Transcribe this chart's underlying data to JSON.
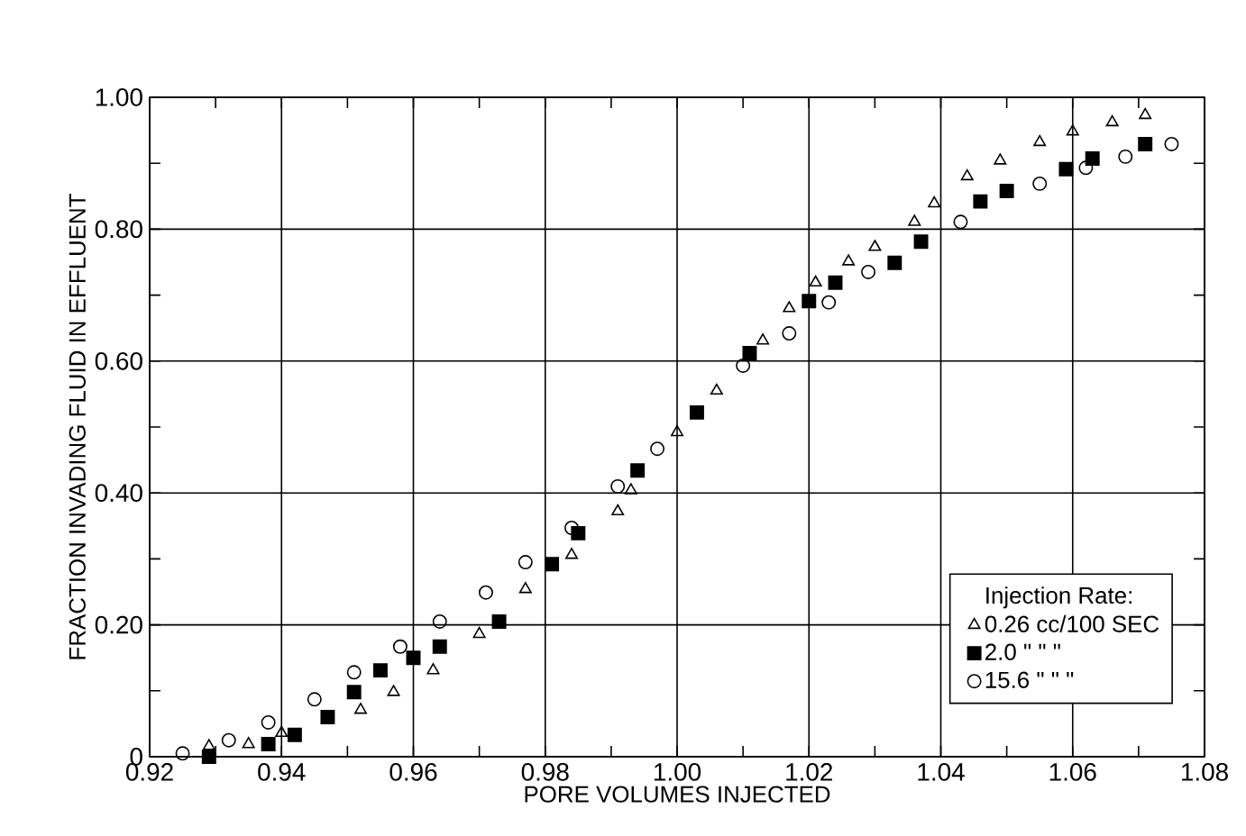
{
  "chart_data": {
    "type": "scatter",
    "xlabel": "PORE VOLUMES INJECTED",
    "ylabel": "FRACTION INVADING FLUID IN EFFLUENT",
    "legend_title": "Injection Rate:",
    "xlim": [
      0.92,
      1.08
    ],
    "ylim": [
      0,
      1.0
    ],
    "xticks": [
      {
        "value": 0.92,
        "label": "0.92"
      },
      {
        "value": 0.94,
        "label": "0.94"
      },
      {
        "value": 0.96,
        "label": "0.96"
      },
      {
        "value": 0.98,
        "label": "0.98"
      },
      {
        "value": 1.0,
        "label": "1.00"
      },
      {
        "value": 1.02,
        "label": "1.02"
      },
      {
        "value": 1.04,
        "label": "1.04"
      },
      {
        "value": 1.06,
        "label": "1.06"
      },
      {
        "value": 1.08,
        "label": "1.08"
      }
    ],
    "yticks": [
      0,
      {
        "value": 0.2,
        "label": "0.20"
      },
      {
        "value": 0.4,
        "label": "0.40"
      },
      {
        "value": 0.6,
        "label": "0.60"
      },
      {
        "value": 0.8,
        "label": "0.80"
      },
      {
        "value": 1.0,
        "label": "1.00"
      }
    ],
    "grid": true,
    "legend": "bottom right",
    "series": [
      {
        "name": "0.26 cc/100 SEC",
        "color": "#000000",
        "marker": "triangle",
        "x": [
          0.929,
          0.935,
          0.94,
          0.952,
          0.957,
          0.963,
          0.97,
          0.977,
          0.984,
          0.991,
          0.993,
          1.0,
          1.006,
          1.013,
          1.017,
          1.021,
          1.026,
          1.03,
          1.036,
          1.039,
          1.044,
          1.049,
          1.055,
          1.06,
          1.066,
          1.071
        ],
        "values": [
          0.016,
          0.019,
          0.036,
          0.071,
          0.098,
          0.131,
          0.186,
          0.254,
          0.306,
          0.372,
          0.404,
          0.492,
          0.555,
          0.631,
          0.68,
          0.719,
          0.751,
          0.773,
          0.811,
          0.839,
          0.88,
          0.904,
          0.932,
          0.948,
          0.962,
          0.973
        ]
      },
      {
        "name": "2.0 \" \" \"",
        "color": "#000000",
        "marker": "square",
        "x": [
          0.929,
          0.938,
          0.942,
          0.947,
          0.951,
          0.955,
          0.96,
          0.964,
          0.973,
          0.981,
          0.985,
          0.994,
          1.003,
          1.011,
          1.02,
          1.024,
          1.033,
          1.037,
          1.046,
          1.05,
          1.059,
          1.063,
          1.071
        ],
        "values": [
          0.0,
          0.019,
          0.033,
          0.06,
          0.098,
          0.131,
          0.15,
          0.167,
          0.205,
          0.292,
          0.339,
          0.434,
          0.522,
          0.612,
          0.691,
          0.719,
          0.749,
          0.781,
          0.842,
          0.858,
          0.891,
          0.907,
          0.929
        ]
      },
      {
        "name": "15.6 \" \" \"",
        "color": "#000000",
        "marker": "circle",
        "x": [
          0.925,
          0.932,
          0.938,
          0.945,
          0.951,
          0.958,
          0.964,
          0.971,
          0.977,
          0.984,
          0.991,
          0.997,
          1.01,
          1.017,
          1.023,
          1.029,
          1.043,
          1.055,
          1.062,
          1.068,
          1.075
        ],
        "values": [
          0.005,
          0.025,
          0.052,
          0.087,
          0.128,
          0.167,
          0.205,
          0.249,
          0.295,
          0.347,
          0.41,
          0.467,
          0.593,
          0.642,
          0.689,
          0.735,
          0.811,
          0.869,
          0.893,
          0.91,
          0.929
        ]
      }
    ]
  }
}
